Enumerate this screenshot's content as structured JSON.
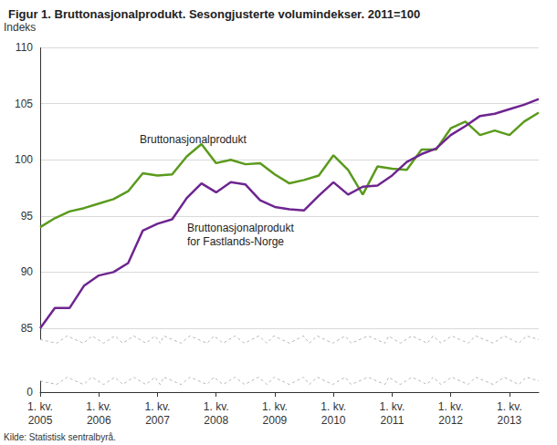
{
  "chart_data": {
    "type": "line",
    "title": "Figur 1. Bruttonasjonalprodukt. Sesongjusterte volumindekser. 2011=100",
    "y_label": "Indeks",
    "source": "Kilde: Statistisk sentralbyrå.",
    "annotations": [
      "Bruttonasjonalprodukt",
      "Bruttonasjonalprodukt\nfor Fastlands-Norge"
    ],
    "categories": [
      "1. kv.\n2005",
      null,
      null,
      null,
      "1. kv.\n2006",
      null,
      null,
      null,
      "1. kv.\n2007",
      null,
      null,
      null,
      "1. kv.\n2008",
      null,
      null,
      null,
      "1. kv.\n2009",
      null,
      null,
      null,
      "1. kv.\n2010",
      null,
      null,
      null,
      "1. kv.\n2011",
      null,
      null,
      null,
      "1. kv.\n2012",
      null,
      null,
      null,
      "1. kv.\n2013",
      null,
      null
    ],
    "series": [
      {
        "name": "Bruttonasjonalprodukt",
        "color": "#5a9a1c",
        "values": [
          94.0,
          94.8,
          95.4,
          95.7,
          96.1,
          96.5,
          97.2,
          98.8,
          98.6,
          98.7,
          100.3,
          101.4,
          99.7,
          100.0,
          99.6,
          99.7,
          98.7,
          97.9,
          98.2,
          98.6,
          100.4,
          99.1,
          96.9,
          99.4,
          99.2,
          99.1,
          100.9,
          100.9,
          102.8,
          103.4,
          102.2,
          102.6,
          102.2,
          103.4,
          104.2
        ]
      },
      {
        "name": "Bruttonasjonalprodukt for Fastlands-Norge",
        "color": "#6e2590",
        "values": [
          85.0,
          86.8,
          86.8,
          88.8,
          89.7,
          90.0,
          90.8,
          93.7,
          94.3,
          94.7,
          96.6,
          97.9,
          97.1,
          98.0,
          97.8,
          96.4,
          95.8,
          95.6,
          95.5,
          96.8,
          98.0,
          96.9,
          97.6,
          97.7,
          98.6,
          99.8,
          100.5,
          101.0,
          102.2,
          103.0,
          103.9,
          104.1,
          104.5,
          104.9,
          105.4
        ]
      }
    ],
    "ylim": [
      0,
      110
    ],
    "yticks": [
      0,
      85,
      90,
      95,
      100,
      105,
      110
    ],
    "ybreak": [
      1,
      84
    ],
    "grid": true
  }
}
